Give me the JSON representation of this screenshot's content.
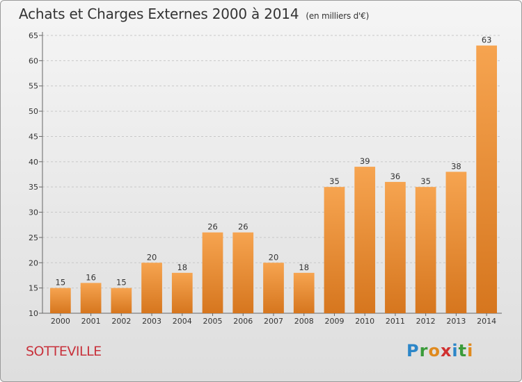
{
  "header": {
    "title": "Achats et Charges Externes 2000 à 2014",
    "subtitle": "(en milliers d'€)"
  },
  "footer": {
    "commune": "SOTTEVILLE",
    "brand_letters": [
      "P",
      "r",
      "o",
      "x",
      "i",
      "t",
      "i"
    ]
  },
  "colors": {
    "bar_top": "#f6a450",
    "bar_bottom": "#d6761e",
    "commune_text": "#c8323c"
  },
  "chart_data": {
    "type": "bar",
    "title": "Achats et Charges Externes 2000 à 2014",
    "subtitle": "(en milliers d'€)",
    "categories": [
      "2000",
      "2001",
      "2002",
      "2003",
      "2004",
      "2005",
      "2006",
      "2007",
      "2008",
      "2009",
      "2010",
      "2011",
      "2012",
      "2013",
      "2014"
    ],
    "values": [
      15,
      16,
      15,
      20,
      18,
      26,
      26,
      20,
      18,
      35,
      39,
      36,
      35,
      38,
      63
    ],
    "xlabel": "",
    "ylabel": "",
    "ylim": [
      10,
      65
    ],
    "yticks": [
      10,
      15,
      20,
      25,
      30,
      35,
      40,
      45,
      50,
      55,
      60,
      65
    ],
    "grid": true
  }
}
